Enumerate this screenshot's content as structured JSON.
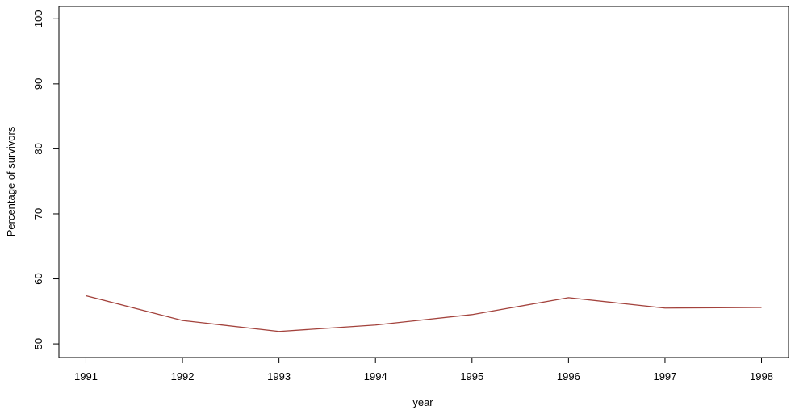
{
  "chart_data": {
    "type": "line",
    "xlabel": "year",
    "ylabel": "Percentage of survivors",
    "x": [
      1991,
      1992,
      1993,
      1994,
      1995,
      1996,
      1997,
      1998
    ],
    "series": [
      {
        "color": "#a3423c",
        "values": [
          57.4,
          53.6,
          51.9,
          52.9,
          54.5,
          57.1,
          55.5,
          55.6
        ]
      }
    ],
    "xlim": [
      1990.72,
      1998.28
    ],
    "ylim": [
      47.9,
      101.9
    ],
    "xticks": [
      1991,
      1992,
      1993,
      1994,
      1995,
      1996,
      1997,
      1998
    ],
    "yticks": [
      50,
      60,
      70,
      80,
      90,
      100
    ],
    "grid": false
  }
}
